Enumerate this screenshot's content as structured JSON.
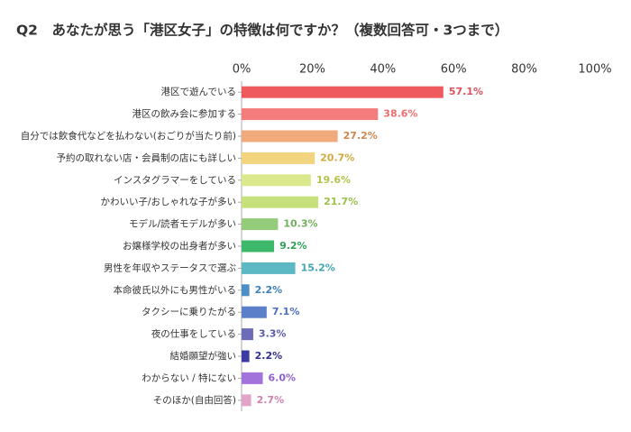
{
  "chart_data": {
    "type": "barh",
    "title": "Q2　あなたが思う「港区女子」の特徴は何ですか？（複数回答可・3つまで）",
    "categories": [
      "港区で遊んでいる",
      "港区の飲み会に参加する",
      "自分では飲食代などを払わない(おごりが当たり前)",
      "予約の取れない店・会員制の店にも詳しい",
      "インスタグラマーをしている",
      "かわいい子/おしゃれな子が多い",
      "モデル/読者モデルが多い",
      "お嬢様学校の出身者が多い",
      "男性を年収やステータスで選ぶ",
      "本命彼氏以外にも男性がいる",
      "タクシーに乗りたがる",
      "夜の仕事をしている",
      "結婚願望が強い",
      "わからない / 特にない",
      "そのほか(自由回答)"
    ],
    "values": [
      57.1,
      38.6,
      27.2,
      20.7,
      19.6,
      21.7,
      10.3,
      9.2,
      15.2,
      2.2,
      7.1,
      3.3,
      2.2,
      6.0,
      2.7
    ],
    "value_labels": [
      "57.1%",
      "38.6%",
      "27.2%",
      "20.7%",
      "19.6%",
      "21.7%",
      "10.3%",
      "9.2%",
      "15.2%",
      "2.2%",
      "7.1%",
      "3.3%",
      "2.2%",
      "6.0%",
      "2.7%"
    ],
    "colors": [
      "#ee5a5e",
      "#f47c7c",
      "#f0aa7c",
      "#f2d47e",
      "#dbe88c",
      "#c6e07c",
      "#94cc7c",
      "#3eb86a",
      "#5cb8c2",
      "#4b8fc6",
      "#5b7fc9",
      "#6c6cb8",
      "#3b3ba2",
      "#a273da",
      "#e2a4c8"
    ],
    "label_colors": [
      "#e0505a",
      "#ee6e6e",
      "#d0874e",
      "#d0aa3e",
      "#b5c44e",
      "#9cc04a",
      "#70b05a",
      "#2ea05a",
      "#40a6b0",
      "#3b7fbc",
      "#4b6fbf",
      "#5a5aa8",
      "#2e2e90",
      "#9060d0",
      "#d080b0"
    ],
    "xlim": [
      0,
      100
    ],
    "xticks": [
      {
        "value": 0,
        "label": "0%"
      },
      {
        "value": 20,
        "label": "20%"
      },
      {
        "value": 40,
        "label": "40%"
      },
      {
        "value": 60,
        "label": "60%"
      },
      {
        "value": 80,
        "label": "80%"
      },
      {
        "value": 100,
        "label": "100%"
      }
    ]
  }
}
